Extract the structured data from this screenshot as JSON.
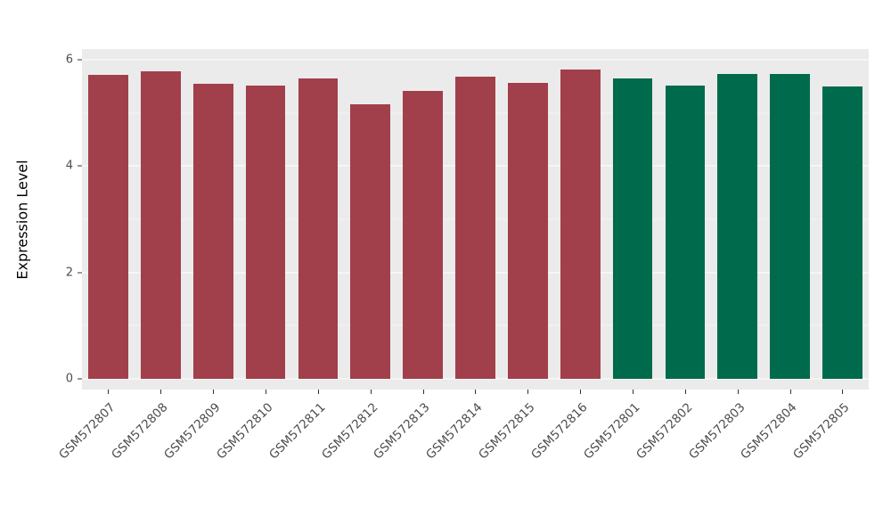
{
  "chart_data": {
    "type": "bar",
    "title": "",
    "xlabel": "",
    "ylabel": "Expression Level",
    "ylim": [
      0,
      6
    ],
    "yticks": [
      0,
      2,
      4,
      6
    ],
    "yticks_minor": [
      1,
      3,
      5
    ],
    "grid": true,
    "legend": "none",
    "categories": [
      "GSM572807",
      "GSM572808",
      "GSM572809",
      "GSM572810",
      "GSM572811",
      "GSM572812",
      "GSM572813",
      "GSM572814",
      "GSM572815",
      "GSM572816",
      "GSM572801",
      "GSM572802",
      "GSM572803",
      "GSM572804",
      "GSM572805"
    ],
    "values": [
      5.72,
      5.79,
      5.55,
      5.52,
      5.65,
      5.16,
      5.42,
      5.69,
      5.57,
      5.81,
      5.64,
      5.52,
      5.73,
      5.73,
      5.49
    ],
    "bar_colors": [
      "#A13F4B",
      "#A13F4B",
      "#A13F4B",
      "#A13F4B",
      "#A13F4B",
      "#A13F4B",
      "#A13F4B",
      "#A13F4B",
      "#A13F4B",
      "#A13F4B",
      "#006B4C",
      "#006B4C",
      "#006B4C",
      "#006B4C",
      "#006B4C"
    ],
    "colors": {
      "group_red": "#A13F4B",
      "group_green": "#006B4C",
      "panel_background": "#EBEBEB",
      "gridline": "#FFFFFF",
      "axis_text": "#4d4d4d"
    }
  }
}
